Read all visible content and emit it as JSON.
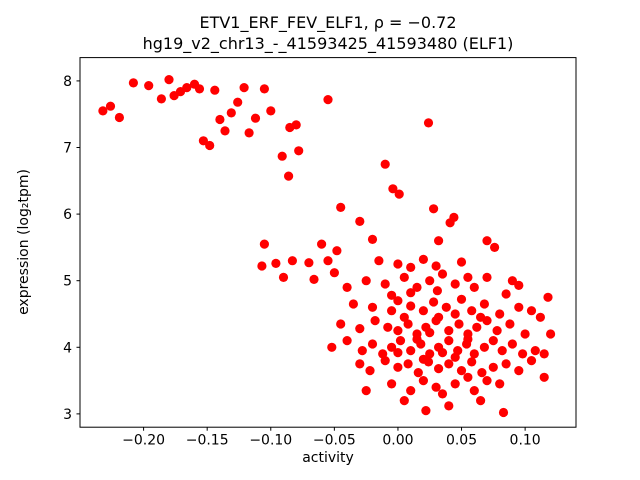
{
  "figure": {
    "title_line1": "ETV1_ERF_FEV_ELF1, ρ = −0.72",
    "title_line2": "hg19_v2_chr13_-_41593425_41593480 (ELF1)",
    "xlabel": "activity",
    "ylabel": "expression (log₂tpm)"
  },
  "chart_data": {
    "type": "scatter",
    "title": "ETV1_ERF_FEV_ELF1, ρ = −0.72",
    "subtitle": "hg19_v2_chr13_-_41593425_41593480 (ELF1)",
    "xlabel": "activity",
    "ylabel": "expression (log2 tpm)",
    "correlation_rho": -0.72,
    "marker_color": "#ff0000",
    "axes_color": "#000000",
    "grid": false,
    "legend": "none",
    "xlim": [
      -0.25,
      0.14
    ],
    "ylim": [
      2.8,
      8.35
    ],
    "xticks": [
      -0.2,
      -0.15,
      -0.1,
      -0.05,
      0.0,
      0.05,
      0.1
    ],
    "xtick_labels": [
      "−0.20",
      "−0.15",
      "−0.10",
      "−0.05",
      "0.00",
      "0.05",
      "0.10"
    ],
    "yticks": [
      3,
      4,
      5,
      6,
      7,
      8
    ],
    "ytick_labels": [
      "3",
      "4",
      "5",
      "6",
      "7",
      "8"
    ],
    "points": [
      [
        -0.232,
        7.55
      ],
      [
        -0.226,
        7.62
      ],
      [
        -0.219,
        7.45
      ],
      [
        -0.208,
        7.97
      ],
      [
        -0.196,
        7.93
      ],
      [
        -0.186,
        7.73
      ],
      [
        -0.18,
        8.02
      ],
      [
        -0.176,
        7.78
      ],
      [
        -0.171,
        7.84
      ],
      [
        -0.166,
        7.9
      ],
      [
        -0.16,
        7.95
      ],
      [
        -0.156,
        7.88
      ],
      [
        -0.153,
        7.1
      ],
      [
        -0.148,
        7.03
      ],
      [
        -0.144,
        7.86
      ],
      [
        -0.14,
        7.42
      ],
      [
        -0.136,
        7.25
      ],
      [
        -0.131,
        7.52
      ],
      [
        -0.126,
        7.68
      ],
      [
        -0.121,
        7.9
      ],
      [
        -0.117,
        7.22
      ],
      [
        -0.112,
        7.44
      ],
      [
        -0.105,
        7.88
      ],
      [
        -0.1,
        7.55
      ],
      [
        -0.085,
        7.3
      ],
      [
        -0.08,
        7.34
      ],
      [
        -0.078,
        6.95
      ],
      [
        -0.055,
        7.72
      ],
      [
        0.024,
        7.37
      ],
      [
        -0.091,
        6.87
      ],
      [
        -0.086,
        6.57
      ],
      [
        -0.01,
        6.75
      ],
      [
        -0.004,
        6.38
      ],
      [
        0.001,
        6.3
      ],
      [
        -0.045,
        6.1
      ],
      [
        -0.03,
        5.89
      ],
      [
        0.028,
        6.08
      ],
      [
        -0.06,
        5.55
      ],
      [
        -0.048,
        5.45
      ],
      [
        -0.02,
        5.62
      ],
      [
        0.032,
        5.6
      ],
      [
        0.044,
        5.95
      ],
      [
        0.041,
        5.87
      ],
      [
        0.07,
        5.6
      ],
      [
        0.076,
        5.5
      ],
      [
        -0.105,
        5.55
      ],
      [
        -0.107,
        5.22
      ],
      [
        -0.096,
        5.26
      ],
      [
        -0.09,
        5.05
      ],
      [
        -0.083,
        5.3
      ],
      [
        -0.07,
        5.27
      ],
      [
        -0.066,
        5.02
      ],
      [
        -0.055,
        5.3
      ],
      [
        -0.05,
        5.12
      ],
      [
        -0.015,
        5.3
      ],
      [
        0.0,
        5.25
      ],
      [
        0.01,
        5.2
      ],
      [
        0.02,
        5.32
      ],
      [
        0.03,
        5.22
      ],
      [
        0.05,
        5.28
      ],
      [
        0.035,
        5.1
      ],
      [
        0.055,
        5.05
      ],
      [
        0.09,
        5.0
      ],
      [
        0.095,
        4.93
      ],
      [
        -0.04,
        4.9
      ],
      [
        -0.025,
        5.0
      ],
      [
        -0.01,
        4.95
      ],
      [
        0.005,
        5.05
      ],
      [
        0.015,
        4.9
      ],
      [
        0.025,
        5.0
      ],
      [
        0.031,
        4.85
      ],
      [
        0.045,
        4.95
      ],
      [
        0.06,
        4.9
      ],
      [
        0.07,
        5.05
      ],
      [
        0.085,
        4.8
      ],
      [
        0.01,
        4.82
      ],
      [
        -0.005,
        4.78
      ],
      [
        -0.035,
        4.65
      ],
      [
        -0.02,
        4.6
      ],
      [
        -0.005,
        4.55
      ],
      [
        0.0,
        4.7
      ],
      [
        0.01,
        4.62
      ],
      [
        0.02,
        4.55
      ],
      [
        0.028,
        4.68
      ],
      [
        0.038,
        4.6
      ],
      [
        0.05,
        4.72
      ],
      [
        0.058,
        4.55
      ],
      [
        0.068,
        4.65
      ],
      [
        0.08,
        4.5
      ],
      [
        0.095,
        4.6
      ],
      [
        0.105,
        4.55
      ],
      [
        0.118,
        4.75
      ],
      [
        0.045,
        4.5
      ],
      [
        0.032,
        4.45
      ],
      [
        0.112,
        4.45
      ],
      [
        -0.045,
        4.35
      ],
      [
        -0.03,
        4.28
      ],
      [
        -0.018,
        4.4
      ],
      [
        -0.008,
        4.3
      ],
      [
        0.0,
        4.25
      ],
      [
        0.008,
        4.35
      ],
      [
        0.015,
        4.2
      ],
      [
        0.022,
        4.3
      ],
      [
        0.03,
        4.4
      ],
      [
        0.04,
        4.25
      ],
      [
        0.048,
        4.35
      ],
      [
        0.055,
        4.2
      ],
      [
        0.062,
        4.3
      ],
      [
        0.07,
        4.4
      ],
      [
        0.078,
        4.25
      ],
      [
        0.088,
        4.35
      ],
      [
        0.1,
        4.2
      ],
      [
        0.12,
        4.2
      ],
      [
        0.005,
        4.45
      ],
      [
        0.025,
        4.22
      ],
      [
        0.065,
        4.45
      ],
      [
        -0.052,
        4.0
      ],
      [
        -0.04,
        4.1
      ],
      [
        -0.028,
        3.95
      ],
      [
        -0.02,
        4.05
      ],
      [
        -0.012,
        3.9
      ],
      [
        -0.005,
        4.0
      ],
      [
        0.002,
        4.1
      ],
      [
        0.01,
        3.95
      ],
      [
        0.018,
        4.05
      ],
      [
        0.025,
        3.9
      ],
      [
        0.032,
        4.0
      ],
      [
        0.04,
        4.1
      ],
      [
        0.047,
        3.95
      ],
      [
        0.054,
        4.05
      ],
      [
        0.06,
        3.9
      ],
      [
        0.068,
        4.0
      ],
      [
        0.075,
        4.1
      ],
      [
        0.082,
        3.95
      ],
      [
        0.09,
        4.05
      ],
      [
        0.098,
        3.9
      ],
      [
        0.108,
        3.95
      ],
      [
        0.115,
        3.9
      ],
      [
        0.015,
        4.12
      ],
      [
        0.035,
        3.92
      ],
      [
        0.055,
        4.12
      ],
      [
        0.0,
        3.92
      ],
      [
        -0.03,
        3.75
      ],
      [
        -0.022,
        3.65
      ],
      [
        -0.01,
        3.8
      ],
      [
        0.0,
        3.7
      ],
      [
        0.008,
        3.75
      ],
      [
        0.016,
        3.62
      ],
      [
        0.024,
        3.78
      ],
      [
        0.032,
        3.68
      ],
      [
        0.04,
        3.75
      ],
      [
        0.05,
        3.65
      ],
      [
        0.058,
        3.78
      ],
      [
        0.066,
        3.62
      ],
      [
        0.075,
        3.7
      ],
      [
        0.085,
        3.75
      ],
      [
        0.095,
        3.65
      ],
      [
        0.105,
        3.8
      ],
      [
        0.02,
        3.82
      ],
      [
        0.045,
        3.85
      ],
      [
        -0.025,
        3.35
      ],
      [
        -0.005,
        3.45
      ],
      [
        0.01,
        3.35
      ],
      [
        0.02,
        3.5
      ],
      [
        0.03,
        3.4
      ],
      [
        0.045,
        3.45
      ],
      [
        0.06,
        3.35
      ],
      [
        0.07,
        3.5
      ],
      [
        0.08,
        3.45
      ],
      [
        0.035,
        3.3
      ],
      [
        0.055,
        3.55
      ],
      [
        0.115,
        3.55
      ],
      [
        0.022,
        3.05
      ],
      [
        0.04,
        3.12
      ],
      [
        0.065,
        3.2
      ],
      [
        0.083,
        3.02
      ],
      [
        0.005,
        3.2
      ]
    ]
  }
}
